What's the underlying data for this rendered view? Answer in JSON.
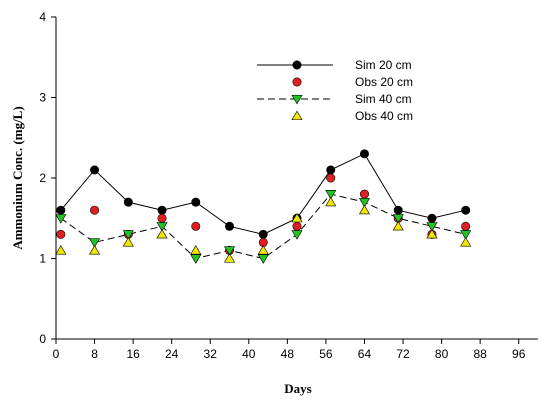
{
  "chart_data": {
    "type": "line",
    "xlabel": "Days",
    "ylabel": "Ammonium Conc. (mg/L)",
    "xlim": [
      0,
      100
    ],
    "ylim": [
      0,
      4
    ],
    "xticks": [
      0,
      8,
      16,
      24,
      32,
      40,
      48,
      56,
      64,
      72,
      80,
      88,
      96
    ],
    "yticks": [
      0,
      1,
      2,
      3,
      4
    ],
    "grid": false,
    "legend_position": "top-right",
    "series": [
      {
        "name": "Sim 20 cm",
        "style": "line-solid",
        "marker": "circle",
        "color": "#000000",
        "line_color": "#000000",
        "x": [
          1,
          8,
          15,
          22,
          29,
          36,
          43,
          50,
          57,
          64,
          71,
          78,
          85
        ],
        "values": [
          1.6,
          2.1,
          1.7,
          1.6,
          1.7,
          1.4,
          1.3,
          1.5,
          2.1,
          2.3,
          1.6,
          1.5,
          1.6
        ]
      },
      {
        "name": "Obs 20 cm",
        "style": "markers",
        "marker": "circle",
        "color": "#e02020",
        "x": [
          1,
          8,
          15,
          22,
          29,
          36,
          43,
          50,
          57,
          64,
          71,
          78,
          85
        ],
        "values": [
          1.3,
          1.6,
          1.3,
          1.5,
          1.4,
          1.1,
          1.2,
          1.4,
          2.0,
          1.8,
          1.5,
          1.3,
          1.4
        ]
      },
      {
        "name": "Sim 40 cm",
        "style": "line-dashed",
        "marker": "triangle-down",
        "color": "#22c422",
        "line_color": "#000000",
        "x": [
          1,
          8,
          15,
          22,
          29,
          36,
          43,
          50,
          57,
          64,
          71,
          78,
          85
        ],
        "values": [
          1.5,
          1.2,
          1.3,
          1.4,
          1.0,
          1.1,
          1.0,
          1.3,
          1.8,
          1.7,
          1.5,
          1.4,
          1.3
        ]
      },
      {
        "name": "Obs 40 cm",
        "style": "markers",
        "marker": "triangle-up",
        "color": "#f2e600",
        "x": [
          1,
          8,
          15,
          22,
          29,
          36,
          43,
          50,
          57,
          64,
          71,
          78,
          85
        ],
        "values": [
          1.1,
          1.1,
          1.2,
          1.3,
          1.1,
          1.0,
          1.1,
          1.5,
          1.7,
          1.6,
          1.4,
          1.3,
          1.2
        ]
      }
    ]
  }
}
